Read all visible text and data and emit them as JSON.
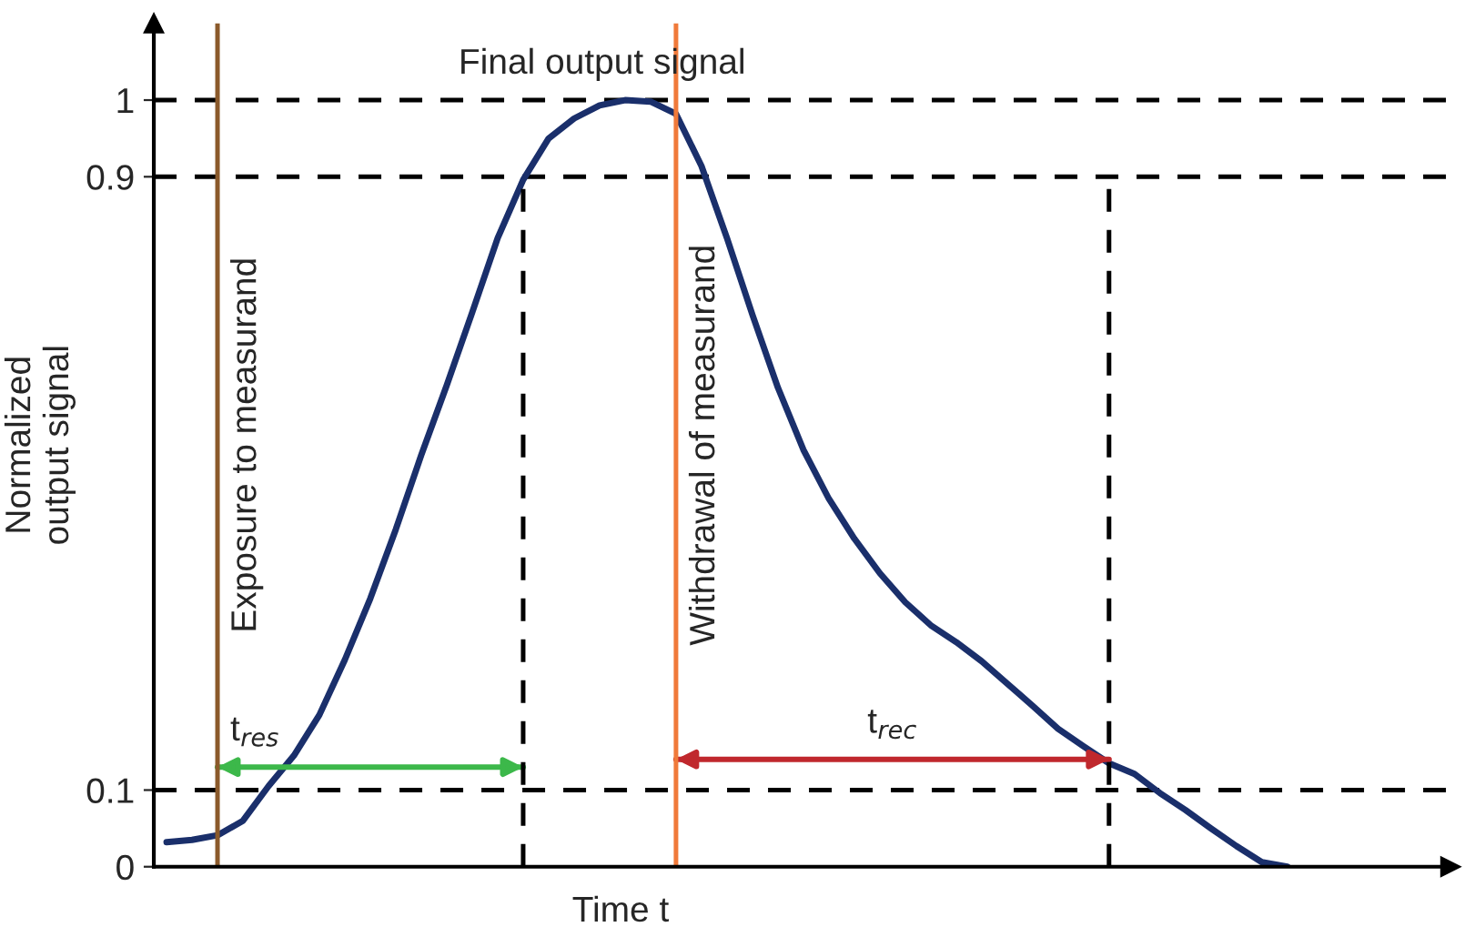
{
  "chart_data": {
    "type": "line",
    "title": "Final output signal",
    "xlabel": "Time t",
    "ylabel": "Normalized\noutput signal",
    "categories": [
      null,
      null,
      null,
      null,
      null,
      null,
      null,
      null,
      null,
      null,
      null,
      null,
      null,
      null,
      null,
      null,
      null,
      null,
      null,
      null,
      null,
      null,
      null,
      null,
      null,
      null,
      null,
      null,
      null,
      null,
      null,
      null,
      null,
      null,
      null,
      null,
      null,
      null,
      null,
      null,
      null,
      null,
      null,
      null,
      null
    ],
    "ylim": [
      0,
      1.1
    ],
    "yticks": [
      0,
      0.1,
      0.9,
      1
    ],
    "grid": false,
    "legend": false,
    "series": [
      {
        "color": "#1a2f6b",
        "values": [
          0.032,
          0.035,
          0.041,
          0.06,
          0.105,
          0.145,
          0.198,
          0.27,
          0.35,
          0.44,
          0.537,
          0.628,
          0.723,
          0.82,
          0.896,
          0.95,
          0.976,
          0.993,
          1.0,
          0.998,
          0.982,
          0.914,
          0.82,
          0.72,
          0.625,
          0.544,
          0.48,
          0.428,
          0.383,
          0.345,
          0.315,
          0.293,
          0.268,
          0.239,
          0.21,
          0.18,
          0.157,
          0.135,
          0.121,
          0.096,
          0.074,
          0.05,
          0.027,
          0.006,
          0.0
        ]
      },
      {
        "color": "#3cb84a",
        "values": [
          null,
          null,
          0.13,
          0.13,
          0.13,
          0.13,
          0.13,
          0.13,
          0.13,
          0.13,
          0.13,
          0.13,
          0.13,
          0.13,
          0.13,
          null,
          null,
          null,
          null,
          null,
          null,
          null,
          null,
          null,
          null,
          null,
          null,
          null,
          null,
          null,
          null,
          null,
          null,
          null,
          null,
          null,
          null,
          null,
          null,
          null,
          null,
          null,
          null,
          null,
          null
        ]
      },
      {
        "color": "#c0282d",
        "values": [
          null,
          null,
          null,
          null,
          null,
          null,
          null,
          null,
          null,
          null,
          null,
          null,
          null,
          null,
          null,
          null,
          null,
          null,
          null,
          null,
          0.14,
          0.14,
          0.14,
          0.14,
          0.14,
          0.14,
          0.14,
          0.14,
          0.14,
          0.14,
          0.14,
          0.14,
          0.14,
          0.14,
          0.14,
          0.14,
          0.14,
          0.14,
          null,
          null,
          null,
          null,
          null,
          null,
          null
        ]
      }
    ],
    "ref_lines": [
      {
        "axis": "y",
        "value": 1,
        "color": "#000000",
        "line_style": "dashed"
      },
      {
        "axis": "y",
        "value": 0.9,
        "color": "#000000",
        "line_style": "dashed"
      },
      {
        "axis": "y",
        "value": 0.1,
        "color": "#000000",
        "line_style": "dashed"
      }
    ],
    "annotations": [
      {
        "text": "t$_{res}$",
        "y": 0.13
      },
      {
        "text": "t$_{rec}$",
        "y": 0.14
      },
      "Exposure to measurand",
      "Withdrawal of measurand"
    ]
  }
}
